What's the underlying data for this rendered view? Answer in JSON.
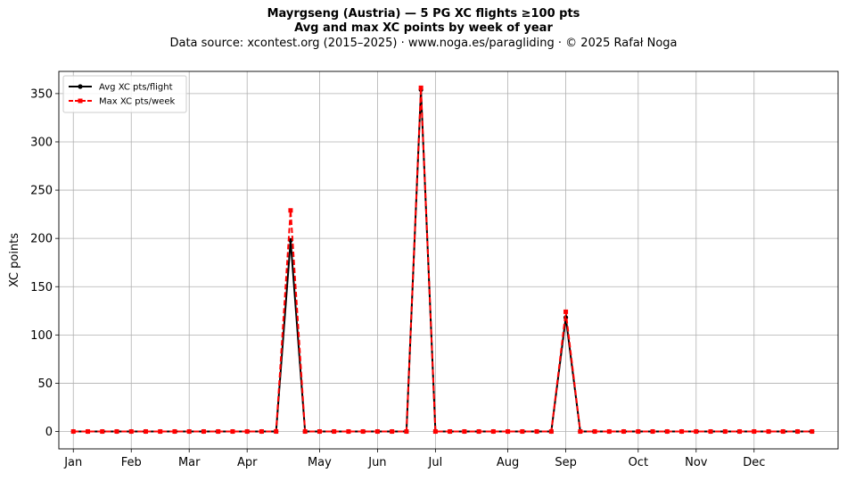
{
  "chart_data": {
    "type": "line",
    "title": "Mayrgseng (Austria)  —  5 PG XC flights ≥100 pts",
    "subtitle": "Avg and max XC points by week of year",
    "source": "Data source: xcontest.org (2015–2025)  ·  www.noga.es/paragliding  ·  © 2025 Rafał Noga",
    "xlabel": "",
    "ylabel": "XC points",
    "x_ticks": [
      {
        "label": "Jan",
        "week": 1
      },
      {
        "label": "Feb",
        "week": 5
      },
      {
        "label": "Mar",
        "week": 9
      },
      {
        "label": "Apr",
        "week": 13
      },
      {
        "label": "May",
        "week": 18
      },
      {
        "label": "Jun",
        "week": 22
      },
      {
        "label": "Jul",
        "week": 26
      },
      {
        "label": "Aug",
        "week": 31
      },
      {
        "label": "Sep",
        "week": 35
      },
      {
        "label": "Oct",
        "week": 40
      },
      {
        "label": "Nov",
        "week": 44
      },
      {
        "label": "Dec",
        "week": 48
      }
    ],
    "y_ticks": [
      0,
      50,
      100,
      150,
      200,
      250,
      300,
      350
    ],
    "xlim": [
      0,
      53.8
    ],
    "ylim": [
      -18,
      373
    ],
    "grid": true,
    "legend_position": "top-left",
    "x": [
      1,
      2,
      3,
      4,
      5,
      6,
      7,
      8,
      9,
      10,
      11,
      12,
      13,
      14,
      15,
      16,
      17,
      18,
      19,
      20,
      21,
      22,
      23,
      24,
      25,
      26,
      27,
      28,
      29,
      30,
      31,
      32,
      33,
      34,
      35,
      36,
      37,
      38,
      39,
      40,
      41,
      42,
      43,
      44,
      45,
      46,
      47,
      48,
      49,
      50,
      51,
      52
    ],
    "series": [
      {
        "name": "Avg XC pts/flight",
        "color": "#000000",
        "style": "solid-circle",
        "values": [
          0,
          0,
          0,
          0,
          0,
          0,
          0,
          0,
          0,
          0,
          0,
          0,
          0,
          0,
          0,
          198,
          0,
          0,
          0,
          0,
          0,
          0,
          0,
          0,
          354,
          0,
          0,
          0,
          0,
          0,
          0,
          0,
          0,
          0,
          118,
          0,
          0,
          0,
          0,
          0,
          0,
          0,
          0,
          0,
          0,
          0,
          0,
          0,
          0,
          0,
          0,
          0
        ]
      },
      {
        "name": "Max XC pts/week",
        "color": "#ff0000",
        "style": "dashed-square",
        "values": [
          0,
          0,
          0,
          0,
          0,
          0,
          0,
          0,
          0,
          0,
          0,
          0,
          0,
          0,
          0,
          229,
          0,
          0,
          0,
          0,
          0,
          0,
          0,
          0,
          356,
          0,
          0,
          0,
          0,
          0,
          0,
          0,
          0,
          0,
          124,
          0,
          0,
          0,
          0,
          0,
          0,
          0,
          0,
          0,
          0,
          0,
          0,
          0,
          0,
          0,
          0,
          0
        ]
      }
    ]
  }
}
